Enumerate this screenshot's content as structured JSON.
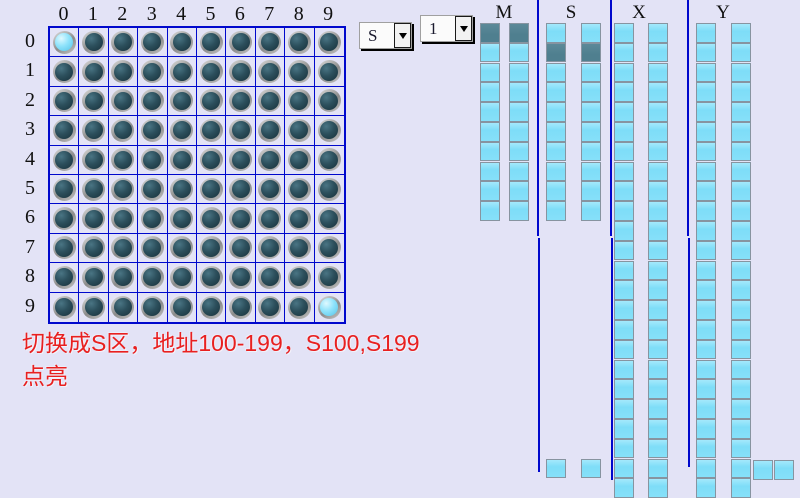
{
  "colors": {
    "background": "#e3e3f6",
    "grid_line": "#0008cc",
    "led_off": "#2c4f5c",
    "led_on": "#8fe3fb",
    "square_on": "#86e0f9",
    "square_dim": "#4f7f8f",
    "caption_red": "#e82020"
  },
  "led_grid": {
    "column_labels": [
      "0",
      "1",
      "2",
      "3",
      "4",
      "5",
      "6",
      "7",
      "8",
      "9"
    ],
    "row_labels": [
      "0",
      "1",
      "2",
      "3",
      "4",
      "5",
      "6",
      "7",
      "8",
      "9"
    ],
    "lit_cells": [
      [
        0,
        0
      ],
      [
        9,
        9
      ]
    ]
  },
  "selectors": {
    "zone": "S",
    "page": "1",
    "caret_icon": "caret-down-icon"
  },
  "indicator_panel": {
    "sections": [
      {
        "label": "M",
        "rows": 10,
        "dark_cells": [
          [
            0,
            0
          ],
          [
            0,
            1
          ]
        ],
        "bottom_extra_rows": []
      },
      {
        "label": "S",
        "rows": 10,
        "dark_cells": [
          [
            1,
            0
          ],
          [
            1,
            1
          ]
        ],
        "bottom_extra_rows": [
          22
        ]
      },
      {
        "label": "X",
        "rows": 24,
        "dark_cells": [],
        "bottom_extra_rows": []
      },
      {
        "label": "Y",
        "rows": 24,
        "dark_cells": [],
        "bottom_extra_rows": []
      }
    ],
    "extra_pair_bottom_right_count": 2
  },
  "caption": {
    "line1": "切换成S区，地址100-199，S100,S199",
    "line2": "点亮"
  }
}
